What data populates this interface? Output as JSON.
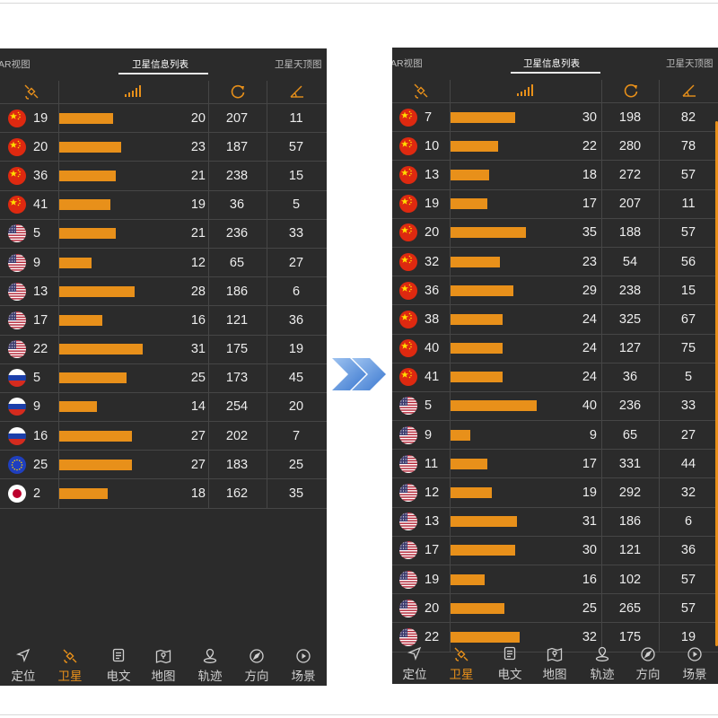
{
  "left": {
    "tabs": [
      "AR视图",
      "卫星信息列表",
      "卫星天顶图"
    ],
    "active_tab": 1,
    "header_icons": [
      "satellite-icon",
      "signal-bars-icon",
      "azimuth-icon",
      "elevation-angle-icon"
    ],
    "rows": [
      {
        "flag": "cn",
        "prn": "19",
        "snr": "20",
        "azimuth": "207",
        "elevation": "11"
      },
      {
        "flag": "cn",
        "prn": "20",
        "snr": "23",
        "azimuth": "187",
        "elevation": "57"
      },
      {
        "flag": "cn",
        "prn": "36",
        "snr": "21",
        "azimuth": "238",
        "elevation": "15"
      },
      {
        "flag": "cn",
        "prn": "41",
        "snr": "19",
        "azimuth": "36",
        "elevation": "5"
      },
      {
        "flag": "us",
        "prn": "5",
        "snr": "21",
        "azimuth": "236",
        "elevation": "33"
      },
      {
        "flag": "us",
        "prn": "9",
        "snr": "12",
        "azimuth": "65",
        "elevation": "27"
      },
      {
        "flag": "us",
        "prn": "13",
        "snr": "28",
        "azimuth": "186",
        "elevation": "6"
      },
      {
        "flag": "us",
        "prn": "17",
        "snr": "16",
        "azimuth": "121",
        "elevation": "36"
      },
      {
        "flag": "us",
        "prn": "22",
        "snr": "31",
        "azimuth": "175",
        "elevation": "19"
      },
      {
        "flag": "ru",
        "prn": "5",
        "snr": "25",
        "azimuth": "173",
        "elevation": "45"
      },
      {
        "flag": "ru",
        "prn": "9",
        "snr": "14",
        "azimuth": "254",
        "elevation": "20"
      },
      {
        "flag": "ru",
        "prn": "16",
        "snr": "27",
        "azimuth": "202",
        "elevation": "7"
      },
      {
        "flag": "eu",
        "prn": "25",
        "snr": "27",
        "azimuth": "183",
        "elevation": "25"
      },
      {
        "flag": "jp",
        "prn": "2",
        "snr": "18",
        "azimuth": "162",
        "elevation": "35"
      }
    ]
  },
  "right": {
    "tabs": [
      "AR视图",
      "卫星信息列表",
      "卫星天顶图"
    ],
    "active_tab": 1,
    "header_icons": [
      "satellite-icon",
      "signal-bars-icon",
      "azimuth-icon",
      "elevation-angle-icon"
    ],
    "rows": [
      {
        "flag": "cn",
        "prn": "7",
        "snr": "30",
        "azimuth": "198",
        "elevation": "82"
      },
      {
        "flag": "cn",
        "prn": "10",
        "snr": "22",
        "azimuth": "280",
        "elevation": "78"
      },
      {
        "flag": "cn",
        "prn": "13",
        "snr": "18",
        "azimuth": "272",
        "elevation": "57"
      },
      {
        "flag": "cn",
        "prn": "19",
        "snr": "17",
        "azimuth": "207",
        "elevation": "11"
      },
      {
        "flag": "cn",
        "prn": "20",
        "snr": "35",
        "azimuth": "188",
        "elevation": "57"
      },
      {
        "flag": "cn",
        "prn": "32",
        "snr": "23",
        "azimuth": "54",
        "elevation": "56"
      },
      {
        "flag": "cn",
        "prn": "36",
        "snr": "29",
        "azimuth": "238",
        "elevation": "15"
      },
      {
        "flag": "cn",
        "prn": "38",
        "snr": "24",
        "azimuth": "325",
        "elevation": "67"
      },
      {
        "flag": "cn",
        "prn": "40",
        "snr": "24",
        "azimuth": "127",
        "elevation": "75"
      },
      {
        "flag": "cn",
        "prn": "41",
        "snr": "24",
        "azimuth": "36",
        "elevation": "5"
      },
      {
        "flag": "us",
        "prn": "5",
        "snr": "40",
        "azimuth": "236",
        "elevation": "33"
      },
      {
        "flag": "us",
        "prn": "9",
        "snr": "9",
        "azimuth": "65",
        "elevation": "27"
      },
      {
        "flag": "us",
        "prn": "11",
        "snr": "17",
        "azimuth": "331",
        "elevation": "44"
      },
      {
        "flag": "us",
        "prn": "12",
        "snr": "19",
        "azimuth": "292",
        "elevation": "32"
      },
      {
        "flag": "us",
        "prn": "13",
        "snr": "31",
        "azimuth": "186",
        "elevation": "6"
      },
      {
        "flag": "us",
        "prn": "17",
        "snr": "30",
        "azimuth": "121",
        "elevation": "36"
      },
      {
        "flag": "us",
        "prn": "19",
        "snr": "16",
        "azimuth": "102",
        "elevation": "57"
      },
      {
        "flag": "us",
        "prn": "20",
        "snr": "25",
        "azimuth": "265",
        "elevation": "57"
      },
      {
        "flag": "us",
        "prn": "22",
        "snr": "32",
        "azimuth": "175",
        "elevation": "19"
      }
    ]
  },
  "bottom_nav": {
    "items": [
      {
        "label": "定位",
        "icon": "location-arrow-icon"
      },
      {
        "label": "卫星",
        "icon": "satellite-icon"
      },
      {
        "label": "电文",
        "icon": "document-icon"
      },
      {
        "label": "地图",
        "icon": "map-icon"
      },
      {
        "label": "轨迹",
        "icon": "track-pin-icon"
      },
      {
        "label": "方向",
        "icon": "compass-icon"
      },
      {
        "label": "场景",
        "icon": "play-scene-icon"
      }
    ],
    "active_index": 1
  },
  "colors": {
    "background": "#2b2b2b",
    "bar": "#e8901a",
    "accent": "#e8901a",
    "arrow": "#4a86d8"
  },
  "snr_scale_max": 50
}
